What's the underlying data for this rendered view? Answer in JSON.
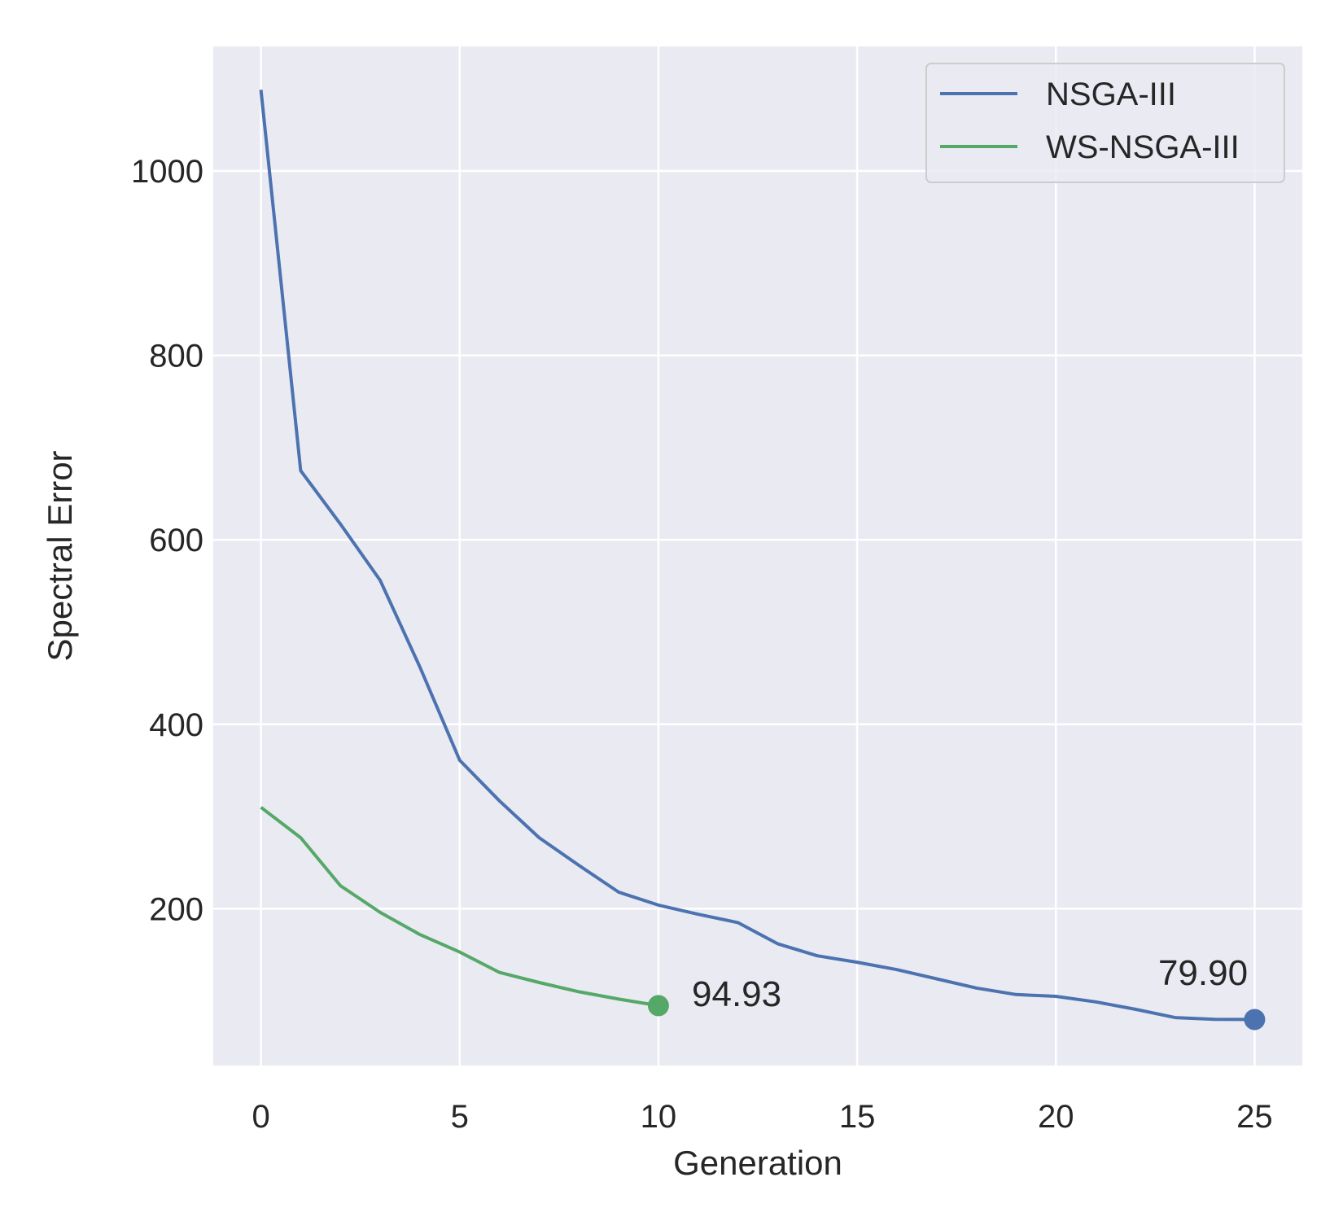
{
  "chart_data": {
    "type": "line",
    "title": "",
    "xlabel": "Generation",
    "ylabel": "Spectral Error",
    "xlim": [
      -1.2,
      26.2
    ],
    "ylim": [
      30,
      1135
    ],
    "x_ticks": [
      0,
      5,
      10,
      15,
      20,
      25
    ],
    "x_tick_labels": [
      "0",
      "5",
      "10",
      "15",
      "20",
      "25"
    ],
    "y_ticks": [
      200,
      400,
      600,
      800,
      1000
    ],
    "y_tick_labels": [
      "200",
      "400",
      "600",
      "800",
      "1000"
    ],
    "grid": true,
    "legend_position": "top-right",
    "background_color": "#eaeaf2",
    "series": [
      {
        "name": "NSGA-III",
        "color": "#4c72b0",
        "x": [
          0,
          1,
          2,
          3,
          4,
          5,
          6,
          7,
          8,
          9,
          10,
          11,
          12,
          13,
          14,
          15,
          16,
          17,
          18,
          19,
          20,
          21,
          22,
          23,
          24,
          25
        ],
        "values": [
          1088,
          675,
          617,
          556,
          462,
          361,
          317,
          277,
          247,
          218,
          204,
          194,
          185,
          162,
          149,
          142,
          134,
          124,
          114,
          107,
          105,
          99,
          91,
          82,
          80,
          79.9
        ]
      },
      {
        "name": "WS-NSGA-III",
        "color": "#55a868",
        "x": [
          0,
          1,
          2,
          3,
          4,
          5,
          6,
          7,
          8,
          9,
          10
        ],
        "values": [
          310,
          277,
          225,
          196,
          172,
          153,
          131,
          120,
          110,
          102,
          94.93
        ]
      }
    ],
    "annotations": [
      {
        "text": "94.93",
        "x": 10,
        "y": 94.93,
        "series": "WS-NSGA-III",
        "marker": true
      },
      {
        "text": "79.90",
        "x": 25,
        "y": 79.9,
        "series": "NSGA-III",
        "marker": true
      }
    ]
  }
}
